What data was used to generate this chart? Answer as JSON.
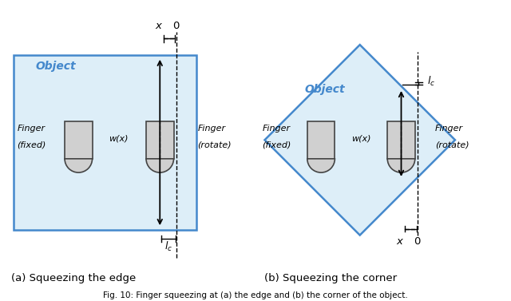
{
  "fig_width": 6.4,
  "fig_height": 3.77,
  "bg_color": "#ffffff",
  "object_fill": "#ddeef8",
  "object_edge": "#4488cc",
  "finger_fill": "#d0d0d0",
  "finger_edge": "#444444",
  "text_color_blue": "#4488cc",
  "label_a": "(a) Squeezing the edge",
  "label_b": "(b) Squeezing the corner",
  "caption": "Fig. 10: Finger squeezing at (a) the edge and (b) the corner of the object."
}
